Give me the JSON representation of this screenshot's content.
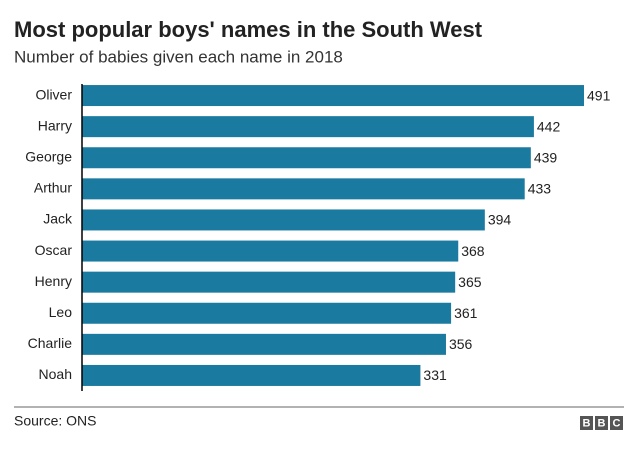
{
  "chart_data": {
    "type": "bar",
    "orientation": "horizontal",
    "title": "Most popular boys' names in the South West",
    "subtitle": "Number of babies given each name in 2018",
    "categories": [
      "Oliver",
      "Harry",
      "George",
      "Arthur",
      "Jack",
      "Oscar",
      "Henry",
      "Leo",
      "Charlie",
      "Noah"
    ],
    "values": [
      491,
      442,
      439,
      433,
      394,
      368,
      365,
      361,
      356,
      331
    ],
    "color": "#1b7a9f",
    "source": "Source: ONS",
    "logo": [
      "B",
      "B",
      "C"
    ]
  }
}
